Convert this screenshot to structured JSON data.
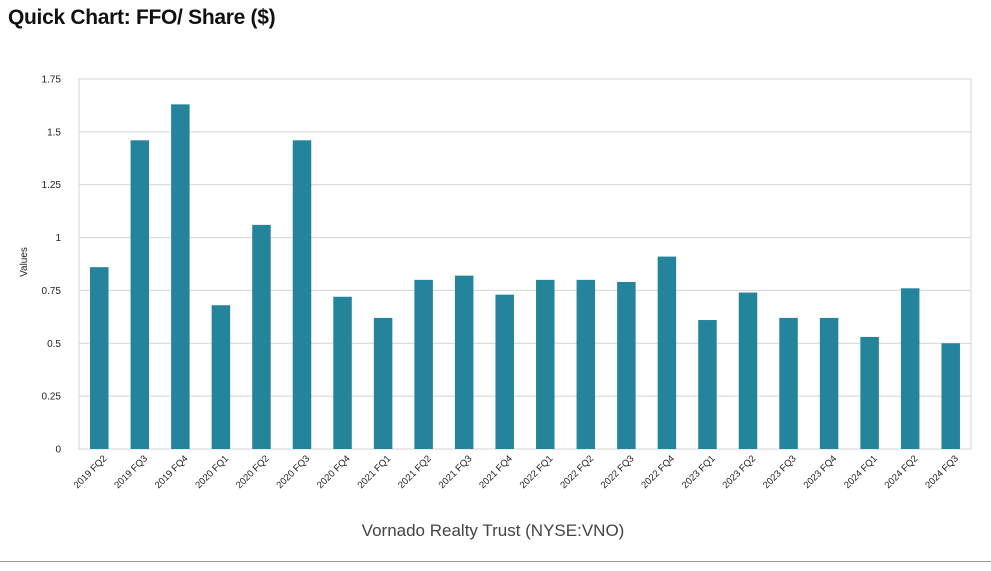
{
  "page": {
    "title": "Quick Chart: FFO/ Share ($)"
  },
  "colors": {
    "bar": "#24849b",
    "grid": "#d4d4d4",
    "text": "#222222"
  },
  "chart_data": {
    "type": "bar",
    "title": "",
    "xlabel": "Vornado Realty Trust (NYSE:VNO)",
    "ylabel": "Values",
    "ylim": [
      0,
      1.75
    ],
    "yticks": [
      0,
      0.25,
      0.5,
      0.75,
      1,
      1.25,
      1.5,
      1.75
    ],
    "ytick_labels": [
      "0",
      "0.25",
      "0.5",
      "0.75",
      "1",
      "1.25",
      "1.5",
      "1.75"
    ],
    "grid": true,
    "legend": "none",
    "categories": [
      "2019 FQ2",
      "2019 FQ3",
      "2019 FQ4",
      "2020 FQ1",
      "2020 FQ2",
      "2020 FQ3",
      "2020 FQ4",
      "2021 FQ1",
      "2021 FQ2",
      "2021 FQ3",
      "2021 FQ4",
      "2022 FQ1",
      "2022 FQ2",
      "2022 FQ3",
      "2022 FQ4",
      "2023 FQ1",
      "2023 FQ2",
      "2023 FQ3",
      "2023 FQ4",
      "2024 FQ1",
      "2024 FQ2",
      "2024 FQ3"
    ],
    "values": [
      0.86,
      1.46,
      1.63,
      0.68,
      1.06,
      1.46,
      0.72,
      0.62,
      0.8,
      0.82,
      0.73,
      0.8,
      0.8,
      0.79,
      0.91,
      0.61,
      0.74,
      0.62,
      0.62,
      0.53,
      0.76,
      0.5
    ]
  }
}
